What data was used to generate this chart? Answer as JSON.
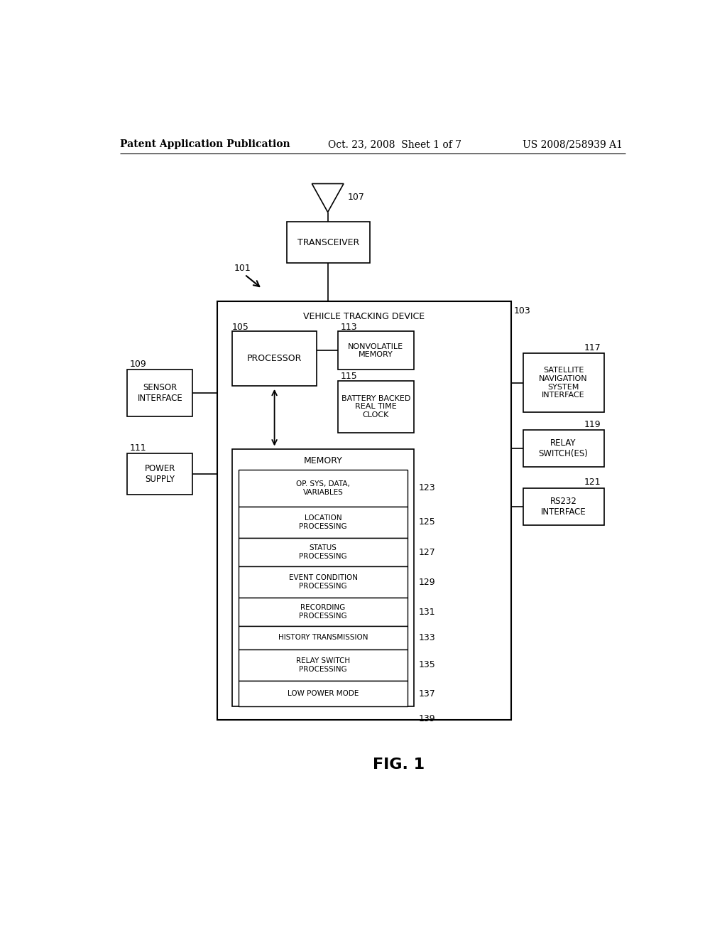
{
  "bg_color": "#ffffff",
  "header_left": "Patent Application Publication",
  "header_center": "Oct. 23, 2008  Sheet 1 of 7",
  "header_right": "US 2008/258939 A1",
  "footer_label": "FIG. 1",
  "transceiver_label": "TRANSCEIVER",
  "transceiver_ref": "107",
  "vtd_label": "VEHICLE TRACKING DEVICE",
  "vtd_ref": "103",
  "arrow101_ref": "101",
  "processor_label": "PROCESSOR",
  "processor_ref": "105",
  "nonvol_label": "NONVOLATILE\nMEMORY",
  "nonvol_ref": "113",
  "battery_label": "BATTERY BACKED\nREAL TIME\nCLOCK",
  "battery_ref": "115",
  "memory_label": "MEMORY",
  "sensor_label": "SENSOR\nINTERFACE",
  "sensor_ref": "109",
  "power_label": "POWER\nSUPPLY",
  "power_ref": "111",
  "satnav_label": "SATELLITE\nNAVIGATION\nSYSTEM\nINTERFACE",
  "satnav_ref": "117",
  "relay_label": "RELAY\nSWITCH(ES)",
  "relay_ref": "119",
  "rs232_label": "RS232\nINTERFACE",
  "rs232_ref": "121",
  "mem_items": [
    {
      "label": "OP. SYS, DATA,\nVARIABLES",
      "ref": "123"
    },
    {
      "label": "LOCATION\nPROCESSING",
      "ref": "125"
    },
    {
      "label": "STATUS\nPROCESSING",
      "ref": "127"
    },
    {
      "label": "EVENT CONDITION\nPROCESSING",
      "ref": "129"
    },
    {
      "label": "RECORDING\nPROCESSING",
      "ref": "131"
    },
    {
      "label": "HISTORY TRANSMISSION",
      "ref": "133"
    },
    {
      "label": "RELAY SWITCH\nPROCESSING",
      "ref": "135"
    },
    {
      "label": "LOW POWER MODE",
      "ref": "137"
    }
  ],
  "last_ref": "139"
}
